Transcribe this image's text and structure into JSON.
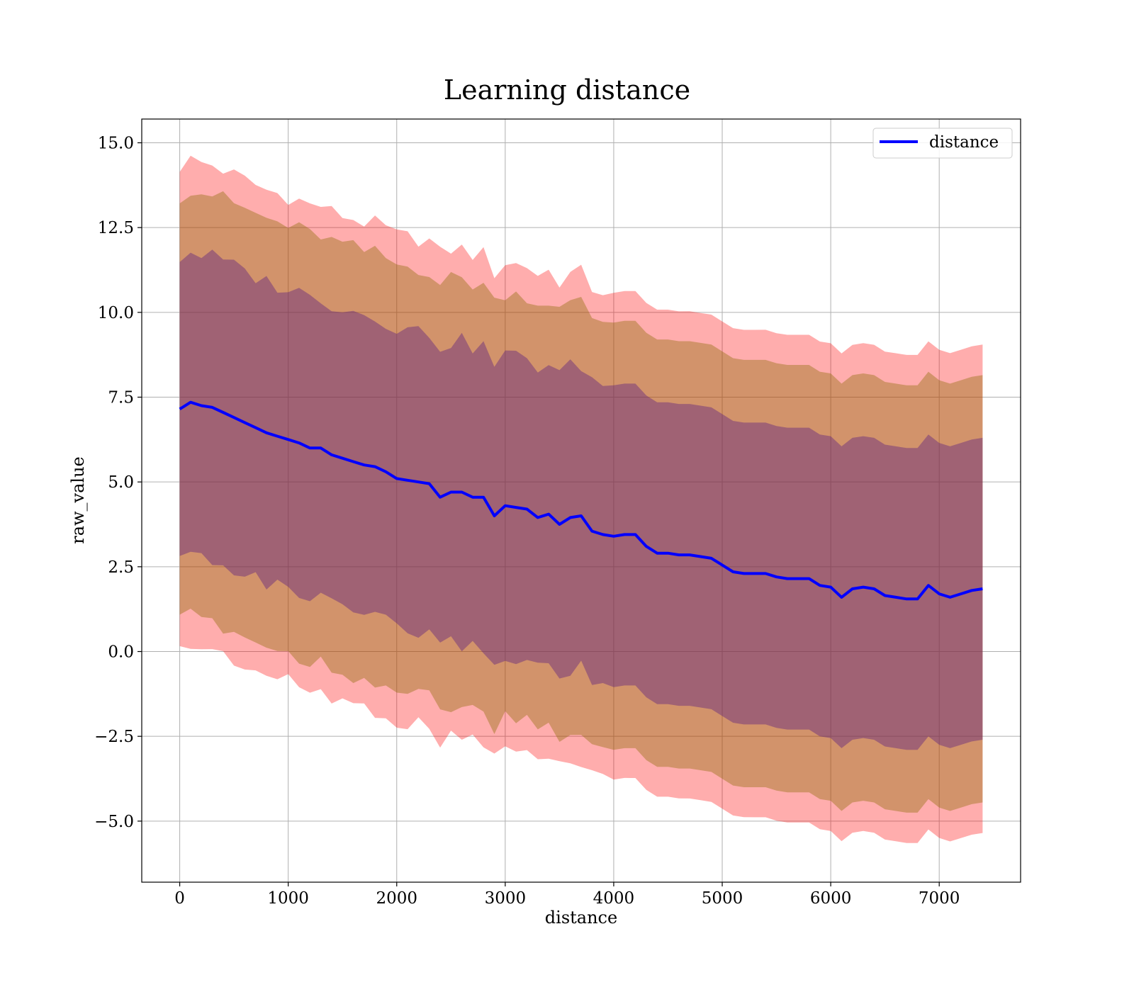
{
  "chart_data": {
    "type": "line",
    "title": "Learning distance",
    "xlabel": "distance",
    "ylabel": "raw_value",
    "xlim": [
      -350,
      7750
    ],
    "ylim": [
      -6.8,
      15.7
    ],
    "x_ticks": [
      0,
      1000,
      2000,
      3000,
      4000,
      5000,
      6000,
      7000
    ],
    "y_ticks": [
      -5.0,
      -2.5,
      0.0,
      2.5,
      5.0,
      7.5,
      10.0,
      12.5,
      15.0
    ],
    "x_tick_labels": [
      "0",
      "1000",
      "2000",
      "3000",
      "4000",
      "5000",
      "6000",
      "7000"
    ],
    "y_tick_labels": [
      "−5.0",
      "−2.5",
      "0.0",
      "2.5",
      "5.0",
      "7.5",
      "10.0",
      "12.5",
      "15.0"
    ],
    "grid": true,
    "legend": {
      "placement": "top-right",
      "entries": [
        "distance"
      ]
    },
    "series": [
      {
        "name": "distance",
        "color": "#0000ff",
        "x": [
          0,
          100,
          200,
          300,
          400,
          500,
          600,
          700,
          800,
          900,
          1000,
          1100,
          1200,
          1300,
          1400,
          1500,
          1600,
          1700,
          1800,
          1900,
          2000,
          2100,
          2200,
          2300,
          2400,
          2500,
          2600,
          2700,
          2800,
          2900,
          3000,
          3100,
          3200,
          3300,
          3400,
          3500,
          3600,
          3700,
          3800,
          3900,
          4000,
          4100,
          4200,
          4300,
          4400,
          4500,
          4600,
          4700,
          4800,
          4900,
          5000,
          5100,
          5200,
          5300,
          5400,
          5500,
          5600,
          5700,
          5800,
          5900,
          6000,
          6100,
          6200,
          6300,
          6400,
          6500,
          6600,
          6700,
          6800,
          6900,
          7000,
          7100,
          7200,
          7300,
          7400
        ],
        "y": [
          7.15,
          7.35,
          7.25,
          7.2,
          7.05,
          6.9,
          6.75,
          6.6,
          6.45,
          6.35,
          6.25,
          6.15,
          6.0,
          6.0,
          5.8,
          5.7,
          5.6,
          5.5,
          5.45,
          5.3,
          5.1,
          5.05,
          5.0,
          4.95,
          4.55,
          4.7,
          4.7,
          4.55,
          4.55,
          4.0,
          4.3,
          4.25,
          4.2,
          3.95,
          4.05,
          3.75,
          3.95,
          4.0,
          3.55,
          3.45,
          3.4,
          3.45,
          3.45,
          3.1,
          2.9,
          2.9,
          2.85,
          2.85,
          2.8,
          2.75,
          2.55,
          2.35,
          2.3,
          2.3,
          2.3,
          2.2,
          2.15,
          2.15,
          2.15,
          1.95,
          1.9,
          1.6,
          1.85,
          1.9,
          1.85,
          1.65,
          1.6,
          1.55,
          1.55,
          1.95,
          1.7,
          1.6,
          1.7,
          1.8,
          1.85
        ]
      }
    ],
    "bands": [
      {
        "sigma": 3,
        "color": "#ff0000",
        "opacity": 0.32,
        "half_width_start": 7.15,
        "half_width_end": 7.2
      },
      {
        "sigma": 2,
        "color": "#8a6a00",
        "opacity": 0.38,
        "half_width_start": 6.3,
        "half_width_end": 6.3
      },
      {
        "sigma": 1,
        "color": "#5a2080",
        "opacity": 0.42,
        "half_width_start": 4.45,
        "half_width_end": 4.45
      }
    ]
  }
}
